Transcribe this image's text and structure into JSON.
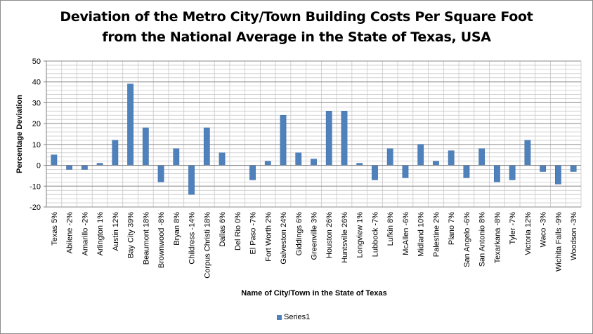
{
  "chart_data": {
    "type": "bar",
    "title_line1": "Deviation of the Metro City/Town Building Costs Per Square Foot",
    "title_line2": "from the National Average in the State of Texas, USA",
    "xlabel": "Name of City/Town in the State of Texas",
    "ylabel": "Percentage Deviation",
    "ylim": [
      -20,
      50
    ],
    "yticks": [
      "50",
      "40",
      "30",
      "20",
      "10",
      "0",
      "-10",
      "-20"
    ],
    "ytick_values": [
      50,
      40,
      30,
      20,
      10,
      0,
      -10,
      -20
    ],
    "grid": true,
    "legend_position": "bottom",
    "bar_color": "#4f81bd",
    "categories": [
      "Texas 5%",
      "Abilene -2%",
      "Amarillo -2%",
      "Arlington 1%",
      "Austin 12%",
      "Bay City 39%",
      "Beaumont 18%",
      "Brownwood -8%",
      "Bryan 8%",
      "Childress -14%",
      "Corpus Christi 18%",
      "Dallas 6%",
      "Del Rio 0%",
      "El Paso -7%",
      "Fort Worth 2%",
      "Galveston 24%",
      "Giddings 6%",
      "Greenville 3%",
      "Houston 26%",
      "Huntsville 26%",
      "Longview 1%",
      "Lubbock -7%",
      "Lufkin 8%",
      "McAllen -6%",
      "Midland 10%",
      "Palestine 2%",
      "Plano 7%",
      "San Angelo -6%",
      "San Antonio 8%",
      "Texarkana -8%",
      "Tyler -7%",
      "Victoria 12%",
      "Waco -3%",
      "Wichita Falls -9%",
      "Woodson -3%"
    ],
    "series": [
      {
        "name": "Series1",
        "values": [
          5,
          -2,
          -2,
          1,
          12,
          39,
          18,
          -8,
          8,
          -14,
          18,
          6,
          0,
          -7,
          2,
          24,
          6,
          3,
          26,
          26,
          1,
          -7,
          8,
          -6,
          10,
          2,
          7,
          -6,
          8,
          -8,
          -7,
          12,
          -3,
          -9,
          -3
        ]
      }
    ]
  }
}
